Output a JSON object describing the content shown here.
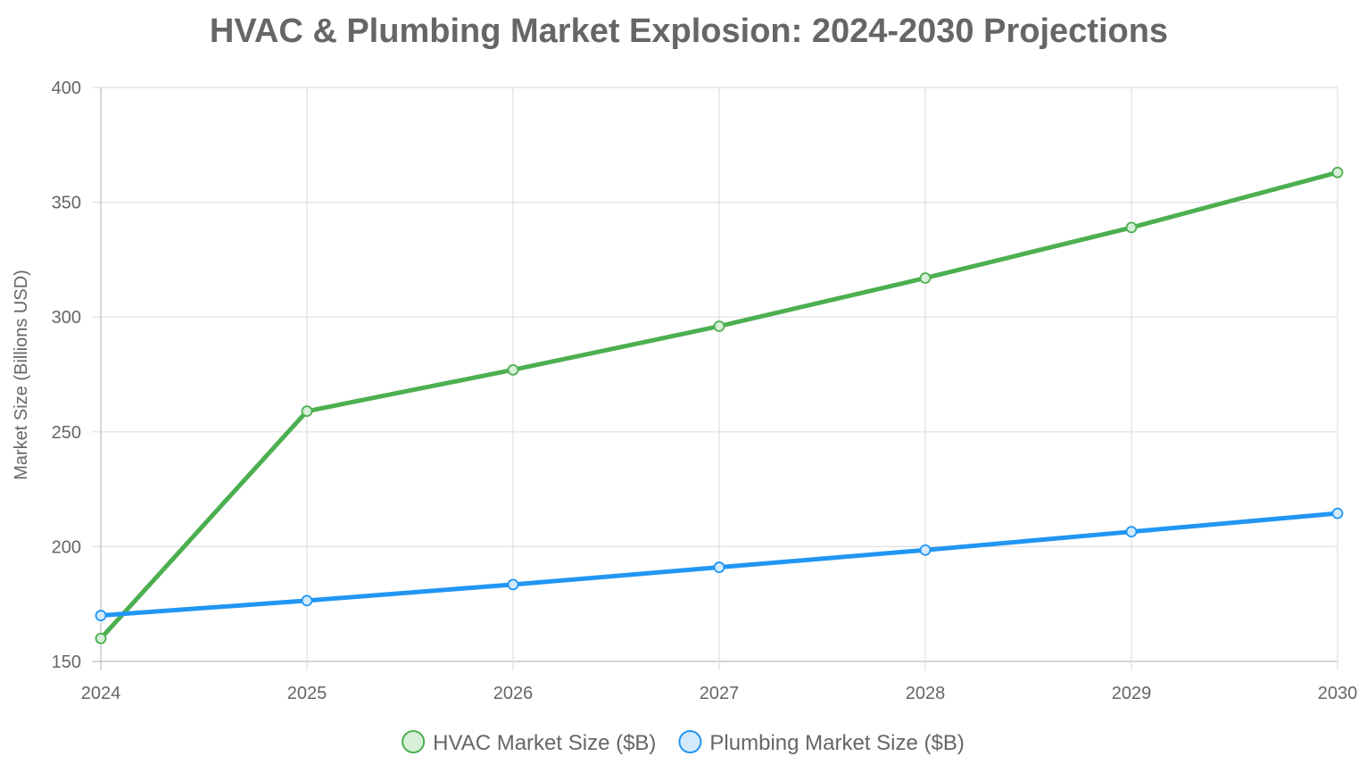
{
  "chart_data": {
    "type": "line",
    "title": "HVAC & Plumbing Market Explosion: 2024-2030 Projections",
    "xlabel": "",
    "ylabel": "Market Size (Billions USD)",
    "categories": [
      "2024",
      "2025",
      "2026",
      "2027",
      "2028",
      "2029",
      "2030"
    ],
    "y_ticks": [
      "150",
      "200",
      "250",
      "300",
      "350",
      "400"
    ],
    "ylim": [
      150,
      400
    ],
    "grid": true,
    "legend_position": "bottom",
    "series": [
      {
        "name": "HVAC Market Size ($B)",
        "color": "#4CAF50",
        "fill": "#D7EFD8",
        "values": [
          160,
          259,
          277,
          296,
          317,
          339,
          363
        ]
      },
      {
        "name": "Plumbing Market Size ($B)",
        "color": "#2196F3",
        "fill": "#D3EAFD",
        "values": [
          170,
          176.5,
          183.5,
          191,
          198.5,
          206.5,
          214.5
        ]
      }
    ]
  }
}
